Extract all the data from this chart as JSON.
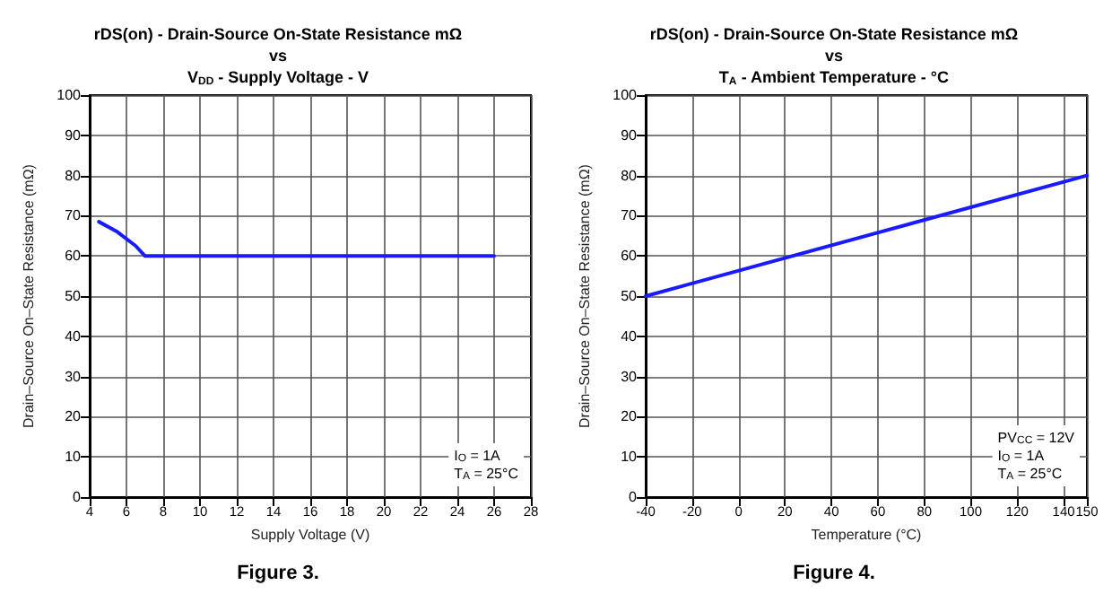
{
  "chart_data": [
    {
      "type": "line",
      "title": "rDS(on) - Drain-Source On-State Resistance mΩ\nvs\nV$_{DD}$ - Supply Voltage - V",
      "xlabel": "Supply Voltage (V)",
      "ylabel": "Drain–Source On–State Resistance (mΩ)",
      "x": [
        4.5,
        5.5,
        6.5,
        7,
        26
      ],
      "series": [
        {
          "color": "#1a1aff",
          "values": [
            68.5,
            66,
            62.5,
            60,
            60
          ]
        }
      ],
      "xlim": [
        4,
        28
      ],
      "xticks": [
        4,
        6,
        8,
        10,
        12,
        14,
        16,
        18,
        20,
        22,
        24,
        26,
        28
      ],
      "ylim": [
        0,
        100
      ],
      "yticks": [
        0,
        10,
        20,
        30,
        40,
        50,
        60,
        70,
        80,
        90,
        100
      ],
      "grid": true,
      "marker": "none",
      "annotations": [
        "I$_{O}$ = 1A\nT$_{A}$ = 25°C",
        "Figure 3."
      ]
    },
    {
      "type": "line",
      "title": "rDS(on) - Drain-Source On-State Resistance mΩ\nvs\nT$_{A}$ - Ambient Temperature - °C",
      "xlabel": "Temperature (°C)",
      "ylabel": "Drain–Source On–State Resistance (mΩ)",
      "x": [
        -40,
        150
      ],
      "series": [
        {
          "color": "#1a1aff",
          "values": [
            50,
            80
          ]
        }
      ],
      "xlim": [
        -40,
        150
      ],
      "xticks": [
        -40,
        -20,
        0,
        20,
        40,
        60,
        80,
        100,
        120,
        140,
        150
      ],
      "ylim": [
        0,
        100
      ],
      "yticks": [
        0,
        10,
        20,
        30,
        40,
        50,
        60,
        70,
        80,
        90,
        100
      ],
      "grid": true,
      "marker": "none",
      "annotations": [
        "PV$_{CC}$ = 12V\nI$_{O}$ = 1A\nT$_{A}$ = 25°C",
        "Figure 4."
      ]
    }
  ]
}
